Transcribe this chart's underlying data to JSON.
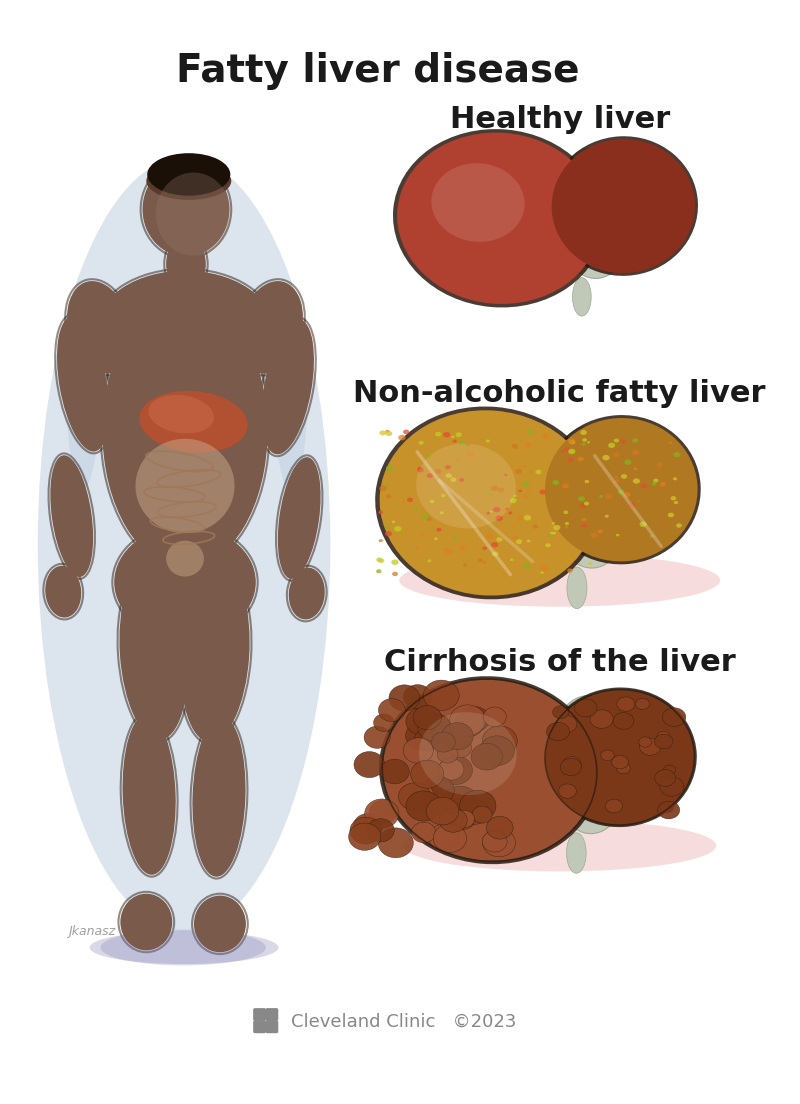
{
  "title": "Fatty liver disease",
  "title_fontsize": 28,
  "title_color": "#1a1a1a",
  "title_fontweight": "bold",
  "background_color": "#ffffff",
  "label1": "Healthy liver",
  "label2": "Non-alcoholic fatty liver",
  "label3": "Cirrhosis of the liver",
  "label_fontsize": 22,
  "label_fontweight": "bold",
  "label_color": "#1a1a1a",
  "footer_text": "Cleveland Clinic   ©2023",
  "footer_color": "#888888",
  "footer_fontsize": 13,
  "healthy_main": "#b04030",
  "healthy_dark": "#8a2e1e",
  "healthy_mid": "#a03828",
  "fatty_main": "#c8922a",
  "fatty_dark": "#b07820",
  "fatty_light": "#d4a84a",
  "cirrh_main": "#9a5030",
  "cirrh_dark": "#7a3818",
  "cirrh_mid": "#8a4220",
  "gall_color": "#c0c8b8",
  "gall_dark": "#9aaa92",
  "outline_color": "#2a1a0e",
  "body_color": "#7a5a4a",
  "body_dark": "#5a3a2a",
  "body_light": "#9a7a6a",
  "glow_blue": "#c0cfe0",
  "glow_pink": "#f0c0c0",
  "organ_liver": "#b85030",
  "organ_intestine": "#c8a080",
  "body_shadow": "#9090b8"
}
